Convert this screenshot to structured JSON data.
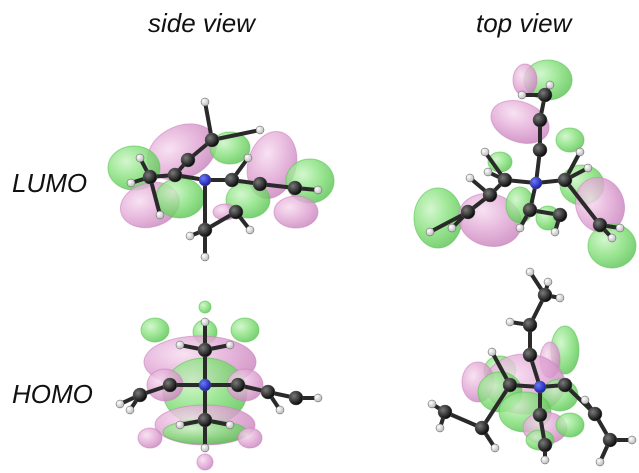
{
  "columns": {
    "side": "side view",
    "top": "top view"
  },
  "rows": {
    "lumo": "LUMO",
    "homo": "HOMO"
  },
  "colors": {
    "lobe_positive": "#86e07c",
    "lobe_negative": "#e2a9d6",
    "lobe_positive_edge": "#5cc455",
    "lobe_negative_edge": "#c984bd",
    "carbon": "#1b1b1b",
    "hydrogen": "#e9e9e9",
    "nitrogen": "#2a36d8",
    "bond": "#2a2a2a"
  },
  "panels": [
    {
      "name": "lumo-side-view",
      "orbital": "LUMO",
      "view": "side view"
    },
    {
      "name": "lumo-top-view",
      "orbital": "LUMO",
      "view": "top view"
    },
    {
      "name": "homo-side-view",
      "orbital": "HOMO",
      "view": "side view"
    },
    {
      "name": "homo-top-view",
      "orbital": "HOMO",
      "view": "top view"
    }
  ]
}
